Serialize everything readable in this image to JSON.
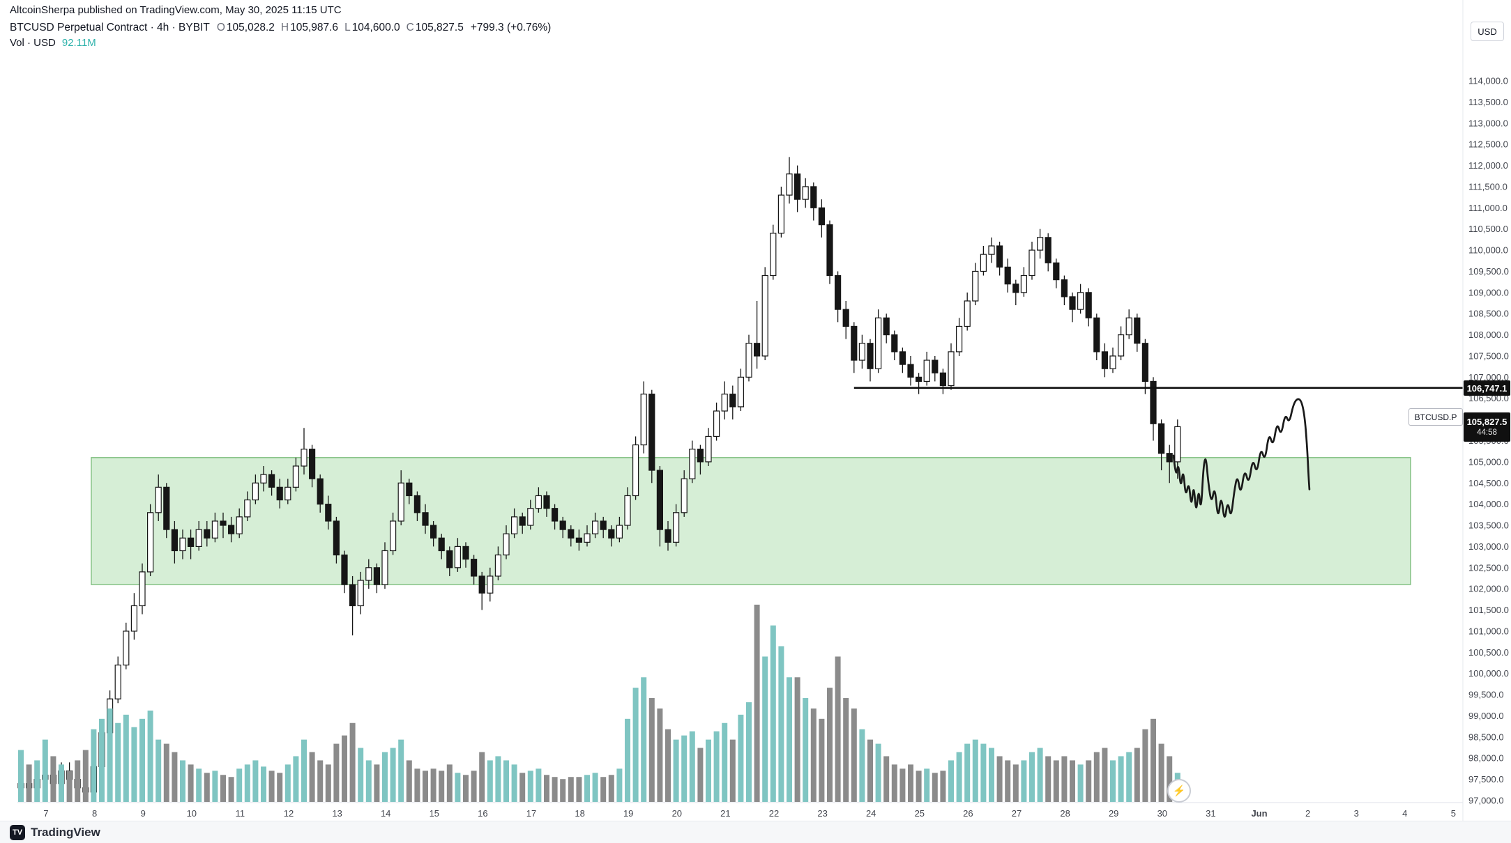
{
  "header": {
    "attribution": "AltcoinSherpa published on TradingView.com, May 30, 2025 11:15 UTC",
    "symbol_title": "BTCUSD Perpetual Contract · 4h · BYBIT",
    "ohlc": [
      {
        "label": "O",
        "value": "105,028.2"
      },
      {
        "label": "H",
        "value": "105,987.6"
      },
      {
        "label": "L",
        "value": "104,600.0"
      },
      {
        "label": "C",
        "value": "105,827.5"
      }
    ],
    "change": "+799.3 (+0.76%)",
    "volume_label": "Vol · USD",
    "volume_value": "92.11M"
  },
  "price_axis": {
    "currency": "USD",
    "ticks": [
      "114,000.0",
      "113,500.0",
      "113,000.0",
      "112,500.0",
      "112,000.0",
      "111,500.0",
      "111,000.0",
      "110,500.0",
      "110,000.0",
      "109,500.0",
      "109,000.0",
      "108,500.0",
      "108,000.0",
      "107,500.0",
      "107,000.0",
      "106,500.0",
      "106,000.0",
      "105,500.0",
      "105,000.0",
      "104,500.0",
      "104,000.0",
      "103,500.0",
      "103,000.0",
      "102,500.0",
      "102,000.0",
      "101,500.0",
      "101,000.0",
      "100,500.0",
      "100,000.0",
      "99,500.0",
      "99,000.0",
      "98,500.0",
      "98,000.0",
      "97,500.0",
      "97,000.0"
    ]
  },
  "time_axis": {
    "ticks": [
      "7",
      "8",
      "9",
      "10",
      "11",
      "12",
      "13",
      "14",
      "15",
      "16",
      "17",
      "18",
      "19",
      "20",
      "21",
      "22",
      "23",
      "24",
      "25",
      "26",
      "27",
      "28",
      "29",
      "30",
      "31",
      "Jun",
      "2",
      "3",
      "4",
      "5"
    ]
  },
  "tags": {
    "level_label": "106,747.1",
    "current_price": "105,827.5",
    "countdown": "44:58",
    "symbol_tag": "BTCUSD.P"
  },
  "icons": {
    "lightning": "⚡"
  },
  "footer": {
    "logo_glyph": "TV",
    "logo_text": "TradingView"
  },
  "colors": {
    "up_candle": "#ffffff",
    "down_candle": "#161616",
    "candle_border": "#161616",
    "vol_up": "#7fc5c2",
    "vol_down": "#8b8b8b",
    "zone_fill": "#d6eed6",
    "zone_border": "#85c285",
    "level_line": "#101010",
    "projection": "#1a1a1a",
    "axis_text": "#42454d",
    "teal": "#2fb3ac"
  },
  "chart_data": {
    "type": "candlestick",
    "title": "BTCUSD Perpetual Contract",
    "symbol": "BTCUSD.P",
    "exchange": "BYBIT",
    "interval": "4h",
    "visible_range": "May 6 2025 – Jun 5 2025",
    "price_scale": {
      "min": 97000,
      "max": 114000,
      "step": 500
    },
    "current_ohlc": {
      "open": 105028.2,
      "high": 105987.6,
      "low": 104600.0,
      "close": 105827.5,
      "change": 799.3,
      "change_pct": 0.76
    },
    "volume_usd": "92.11M",
    "unit_note": "candle prices in thousands of USD; volume in relative height units",
    "candles": [
      [
        97.3,
        97.6,
        97.0,
        97.4,
        25
      ],
      [
        97.4,
        97.5,
        97.1,
        97.3,
        18
      ],
      [
        97.3,
        97.7,
        97.2,
        97.5,
        20
      ],
      [
        97.5,
        97.8,
        97.1,
        97.6,
        30
      ],
      [
        97.6,
        97.8,
        97.2,
        97.4,
        22
      ],
      [
        97.4,
        97.9,
        97.3,
        97.7,
        18
      ],
      [
        97.7,
        97.9,
        97.3,
        97.5,
        15
      ],
      [
        97.5,
        97.7,
        97.1,
        97.3,
        20
      ],
      [
        97.3,
        97.5,
        97.0,
        97.2,
        25
      ],
      [
        97.2,
        98.0,
        97.1,
        97.8,
        35
      ],
      [
        97.8,
        98.8,
        97.7,
        98.6,
        40
      ],
      [
        98.6,
        99.6,
        98.5,
        99.4,
        45
      ],
      [
        99.4,
        100.4,
        99.3,
        100.2,
        38
      ],
      [
        100.2,
        101.2,
        100.1,
        101.0,
        42
      ],
      [
        101.0,
        101.9,
        100.8,
        101.6,
        36
      ],
      [
        101.6,
        102.6,
        101.4,
        102.4,
        40
      ],
      [
        102.4,
        104.0,
        102.3,
        103.8,
        44
      ],
      [
        103.8,
        104.7,
        103.6,
        104.4,
        30
      ],
      [
        104.4,
        104.5,
        103.2,
        103.4,
        28
      ],
      [
        103.4,
        103.6,
        102.6,
        102.9,
        24
      ],
      [
        102.9,
        103.4,
        102.7,
        103.2,
        20
      ],
      [
        103.2,
        103.4,
        102.7,
        103.0,
        18
      ],
      [
        103.0,
        103.6,
        102.9,
        103.4,
        16
      ],
      [
        103.4,
        103.6,
        103.0,
        103.2,
        14
      ],
      [
        103.2,
        103.8,
        103.1,
        103.6,
        15
      ],
      [
        103.6,
        103.8,
        103.2,
        103.5,
        13
      ],
      [
        103.5,
        103.7,
        103.1,
        103.3,
        12
      ],
      [
        103.3,
        103.9,
        103.2,
        103.7,
        16
      ],
      [
        103.7,
        104.3,
        103.6,
        104.1,
        18
      ],
      [
        104.1,
        104.7,
        104.0,
        104.5,
        20
      ],
      [
        104.5,
        104.9,
        104.3,
        104.7,
        17
      ],
      [
        104.7,
        104.8,
        104.2,
        104.4,
        15
      ],
      [
        104.4,
        104.6,
        103.9,
        104.1,
        14
      ],
      [
        104.1,
        104.6,
        104.0,
        104.4,
        18
      ],
      [
        104.4,
        105.1,
        104.3,
        104.9,
        22
      ],
      [
        104.9,
        105.8,
        104.7,
        105.3,
        30
      ],
      [
        105.3,
        105.4,
        104.4,
        104.6,
        24
      ],
      [
        104.6,
        104.7,
        103.8,
        104.0,
        20
      ],
      [
        104.0,
        104.2,
        103.4,
        103.6,
        18
      ],
      [
        103.6,
        103.7,
        102.6,
        102.8,
        28
      ],
      [
        102.8,
        102.9,
        101.9,
        102.1,
        32
      ],
      [
        102.1,
        102.3,
        100.9,
        101.6,
        38
      ],
      [
        101.6,
        102.4,
        101.4,
        102.2,
        26
      ],
      [
        102.2,
        102.7,
        102.0,
        102.5,
        20
      ],
      [
        102.5,
        102.6,
        101.9,
        102.1,
        18
      ],
      [
        102.1,
        103.1,
        102.0,
        102.9,
        24
      ],
      [
        102.9,
        103.8,
        102.8,
        103.6,
        26
      ],
      [
        103.6,
        104.8,
        103.5,
        104.5,
        30
      ],
      [
        104.5,
        104.6,
        104.0,
        104.2,
        20
      ],
      [
        104.2,
        104.3,
        103.6,
        103.8,
        16
      ],
      [
        103.8,
        104.0,
        103.3,
        103.5,
        15
      ],
      [
        103.5,
        103.6,
        103.0,
        103.2,
        16
      ],
      [
        103.2,
        103.3,
        102.7,
        102.9,
        15
      ],
      [
        102.9,
        103.0,
        102.3,
        102.5,
        18
      ],
      [
        102.5,
        103.2,
        102.4,
        103.0,
        14
      ],
      [
        103.0,
        103.1,
        102.5,
        102.7,
        13
      ],
      [
        102.7,
        102.8,
        102.1,
        102.3,
        15
      ],
      [
        102.3,
        102.4,
        101.5,
        101.9,
        24
      ],
      [
        101.9,
        102.5,
        101.7,
        102.3,
        20
      ],
      [
        102.3,
        103.0,
        102.2,
        102.8,
        22
      ],
      [
        102.8,
        103.5,
        102.7,
        103.3,
        20
      ],
      [
        103.3,
        103.9,
        103.2,
        103.7,
        18
      ],
      [
        103.7,
        103.8,
        103.3,
        103.5,
        14
      ],
      [
        103.5,
        104.1,
        103.4,
        103.9,
        15
      ],
      [
        103.9,
        104.4,
        103.8,
        104.2,
        16
      ],
      [
        104.2,
        104.3,
        103.7,
        103.9,
        13
      ],
      [
        103.9,
        104.0,
        103.4,
        103.6,
        12
      ],
      [
        103.6,
        103.7,
        103.2,
        103.4,
        11
      ],
      [
        103.4,
        103.5,
        103.0,
        103.2,
        12
      ],
      [
        103.2,
        103.4,
        102.9,
        103.1,
        12
      ],
      [
        103.1,
        103.5,
        103.0,
        103.3,
        13
      ],
      [
        103.3,
        103.8,
        103.2,
        103.6,
        14
      ],
      [
        103.6,
        103.7,
        103.2,
        103.4,
        12
      ],
      [
        103.4,
        103.5,
        103.0,
        103.2,
        13
      ],
      [
        103.2,
        103.7,
        103.1,
        103.5,
        16
      ],
      [
        103.5,
        104.4,
        103.4,
        104.2,
        40
      ],
      [
        104.2,
        105.6,
        104.1,
        105.4,
        55
      ],
      [
        105.4,
        106.9,
        105.2,
        106.6,
        60
      ],
      [
        106.6,
        106.7,
        104.5,
        104.8,
        50
      ],
      [
        104.8,
        104.9,
        103.0,
        103.4,
        45
      ],
      [
        103.4,
        103.6,
        102.9,
        103.1,
        35
      ],
      [
        103.1,
        104.0,
        103.0,
        103.8,
        30
      ],
      [
        103.8,
        104.8,
        103.7,
        104.6,
        32
      ],
      [
        104.6,
        105.5,
        104.5,
        105.3,
        34
      ],
      [
        105.3,
        105.4,
        104.7,
        105.0,
        26
      ],
      [
        105.0,
        105.8,
        104.9,
        105.6,
        30
      ],
      [
        105.6,
        106.4,
        105.5,
        106.2,
        34
      ],
      [
        106.2,
        106.9,
        106.0,
        106.6,
        38
      ],
      [
        106.6,
        106.8,
        106.0,
        106.3,
        30
      ],
      [
        106.3,
        107.2,
        106.2,
        107.0,
        42
      ],
      [
        107.0,
        108.0,
        106.9,
        107.8,
        48
      ],
      [
        107.8,
        108.8,
        107.2,
        107.5,
        95
      ],
      [
        107.5,
        109.6,
        107.4,
        109.4,
        70
      ],
      [
        109.4,
        110.6,
        109.3,
        110.4,
        85
      ],
      [
        110.4,
        111.5,
        110.3,
        111.3,
        75
      ],
      [
        111.3,
        112.2,
        111.1,
        111.8,
        60
      ],
      [
        111.8,
        112.0,
        110.9,
        111.2,
        60
      ],
      [
        111.2,
        111.7,
        111.0,
        111.5,
        50
      ],
      [
        111.5,
        111.6,
        110.7,
        111.0,
        45
      ],
      [
        111.0,
        111.2,
        110.3,
        110.6,
        40
      ],
      [
        110.6,
        110.7,
        109.2,
        109.4,
        55
      ],
      [
        109.4,
        109.5,
        108.3,
        108.6,
        70
      ],
      [
        108.6,
        108.8,
        107.9,
        108.2,
        50
      ],
      [
        108.2,
        108.3,
        107.1,
        107.4,
        45
      ],
      [
        107.4,
        108.0,
        107.2,
        107.8,
        35
      ],
      [
        107.8,
        107.9,
        106.9,
        107.2,
        30
      ],
      [
        107.2,
        108.6,
        107.1,
        108.4,
        28
      ],
      [
        108.4,
        108.5,
        107.8,
        108.0,
        22
      ],
      [
        108.0,
        108.1,
        107.4,
        107.6,
        18
      ],
      [
        107.6,
        107.7,
        107.1,
        107.3,
        16
      ],
      [
        107.3,
        107.5,
        106.8,
        107.0,
        18
      ],
      [
        107.0,
        107.1,
        106.6,
        106.9,
        15
      ],
      [
        106.9,
        107.6,
        106.8,
        107.4,
        16
      ],
      [
        107.4,
        107.5,
        106.9,
        107.1,
        14
      ],
      [
        107.1,
        107.2,
        106.6,
        106.8,
        15
      ],
      [
        106.8,
        107.8,
        106.7,
        107.6,
        20
      ],
      [
        107.6,
        108.4,
        107.5,
        108.2,
        24
      ],
      [
        108.2,
        109.0,
        108.1,
        108.8,
        28
      ],
      [
        108.8,
        109.7,
        108.7,
        109.5,
        30
      ],
      [
        109.5,
        110.1,
        109.4,
        109.9,
        28
      ],
      [
        109.9,
        110.3,
        109.7,
        110.1,
        26
      ],
      [
        110.1,
        110.2,
        109.4,
        109.6,
        22
      ],
      [
        109.6,
        109.8,
        109.0,
        109.2,
        20
      ],
      [
        109.2,
        109.3,
        108.7,
        109.0,
        18
      ],
      [
        109.0,
        109.6,
        108.9,
        109.4,
        20
      ],
      [
        109.4,
        110.2,
        109.3,
        110.0,
        24
      ],
      [
        110.0,
        110.5,
        109.8,
        110.3,
        26
      ],
      [
        110.3,
        110.4,
        109.5,
        109.7,
        22
      ],
      [
        109.7,
        109.8,
        109.1,
        109.3,
        20
      ],
      [
        109.3,
        109.4,
        108.7,
        108.9,
        22
      ],
      [
        108.9,
        109.0,
        108.3,
        108.6,
        20
      ],
      [
        108.6,
        109.2,
        108.5,
        109.0,
        18
      ],
      [
        109.0,
        109.1,
        108.2,
        108.4,
        20
      ],
      [
        108.4,
        108.5,
        107.4,
        107.6,
        24
      ],
      [
        107.6,
        107.8,
        107.0,
        107.2,
        26
      ],
      [
        107.2,
        107.7,
        107.1,
        107.5,
        20
      ],
      [
        107.5,
        108.2,
        107.4,
        108.0,
        22
      ],
      [
        108.0,
        108.6,
        107.9,
        108.4,
        24
      ],
      [
        108.4,
        108.5,
        107.6,
        107.8,
        26
      ],
      [
        107.8,
        107.9,
        106.6,
        106.9,
        35
      ],
      [
        106.9,
        107.0,
        105.5,
        105.9,
        40
      ],
      [
        105.9,
        106.0,
        104.8,
        105.2,
        28
      ],
      [
        105.2,
        105.4,
        104.5,
        105.0,
        22
      ],
      [
        105.0,
        106.0,
        104.6,
        105.83,
        14
      ]
    ],
    "zone": {
      "idx_start": 8.7,
      "idx_end": 171.8,
      "price_top": 105.1,
      "price_bottom": 102.1,
      "note": "green highlighted support zone"
    },
    "level": {
      "price": 106.7471,
      "idx_start": 103,
      "note": "black horizontal ray at 106,747.1"
    },
    "projection": [
      [
        142.5,
        105.15
      ],
      [
        142.8,
        104.6
      ],
      [
        143.1,
        105.0
      ],
      [
        143.4,
        104.35
      ],
      [
        143.7,
        104.85
      ],
      [
        144.0,
        104.15
      ],
      [
        144.4,
        104.55
      ],
      [
        144.7,
        103.9
      ],
      [
        145.0,
        104.5
      ],
      [
        145.3,
        103.75
      ],
      [
        145.6,
        104.4
      ],
      [
        145.9,
        103.8
      ],
      [
        146.2,
        104.9
      ],
      [
        146.5,
        105.15
      ],
      [
        146.8,
        104.5
      ],
      [
        147.2,
        104.0
      ],
      [
        147.6,
        104.45
      ],
      [
        148.0,
        103.6
      ],
      [
        148.4,
        104.25
      ],
      [
        148.8,
        103.55
      ],
      [
        149.2,
        104.1
      ],
      [
        149.6,
        103.65
      ],
      [
        150.0,
        104.3
      ],
      [
        150.4,
        104.7
      ],
      [
        150.8,
        104.2
      ],
      [
        151.3,
        104.85
      ],
      [
        151.8,
        104.45
      ],
      [
        152.3,
        105.1
      ],
      [
        152.8,
        104.7
      ],
      [
        153.3,
        105.35
      ],
      [
        153.8,
        105.0
      ],
      [
        154.3,
        105.7
      ],
      [
        154.8,
        105.35
      ],
      [
        155.3,
        105.95
      ],
      [
        155.8,
        105.6
      ],
      [
        156.3,
        106.15
      ],
      [
        156.8,
        105.9
      ],
      [
        157.3,
        106.35
      ],
      [
        157.8,
        106.5
      ],
      [
        158.3,
        106.45
      ],
      [
        158.7,
        106.1
      ],
      [
        159.0,
        105.4
      ],
      [
        159.2,
        104.65
      ],
      [
        159.3,
        104.35
      ]
    ]
  }
}
